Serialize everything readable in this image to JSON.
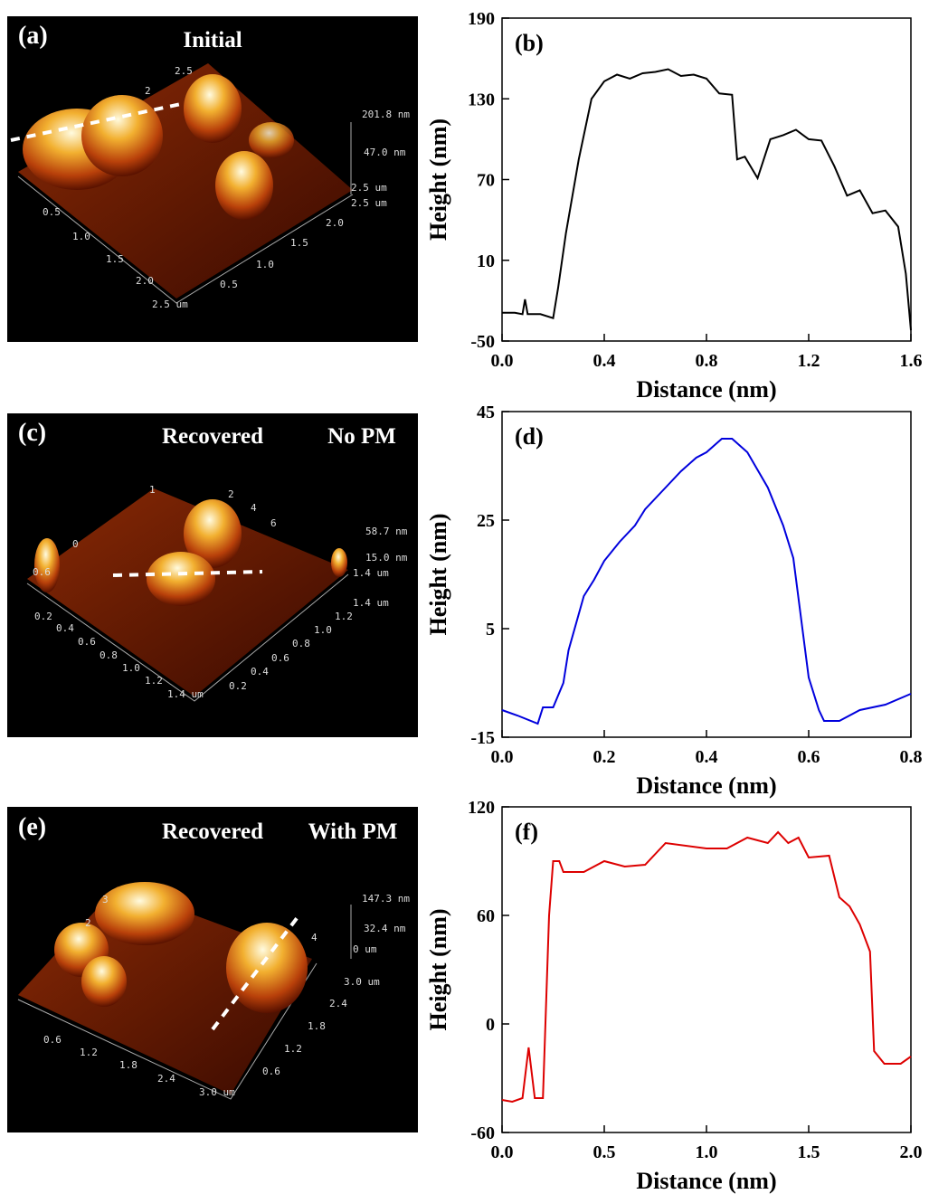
{
  "images": [
    {
      "label": "(a)",
      "titles": [
        "Initial"
      ],
      "texts": [
        "201.8 nm",
        "47.0 nm",
        "2.5 um",
        "2.5 um",
        "0.5",
        "1.0",
        "1.5",
        "2.0",
        "2.5 um",
        "0.5",
        "1.0",
        "1.5",
        "2.0",
        "2",
        "2.5"
      ]
    },
    {
      "label": "(c)",
      "titles": [
        "Recovered",
        "No PM"
      ],
      "texts": [
        "58.7 nm",
        "15.0 nm",
        "1.4 um",
        "1.4 um",
        "0.2",
        "0.4",
        "0.6",
        "0.8",
        "1.0",
        "1.2",
        "1.4 um",
        "0.2",
        "0.4",
        "0.6",
        "0.8",
        "1.0",
        "1.2",
        "1",
        "2",
        "4",
        "6",
        "0",
        "0.6"
      ]
    },
    {
      "label": "(e)",
      "titles": [
        "Recovered",
        "With PM"
      ],
      "texts": [
        "147.3 nm",
        "32.4 nm",
        "0 um",
        "3.0 um",
        "0.6",
        "1.2",
        "1.8",
        "2.4",
        "3.0 um",
        "0.6",
        "1.2",
        "1.8",
        "2.4",
        "3",
        "2",
        "4"
      ]
    }
  ],
  "chart_data": [
    {
      "type": "line",
      "panel_label": "(b)",
      "xlabel": "Distance (nm)",
      "ylabel": "Height (nm)",
      "color": "#000000",
      "x": [
        0,
        0.05,
        0.08,
        0.09,
        0.1,
        0.15,
        0.2,
        0.22,
        0.25,
        0.3,
        0.35,
        0.4,
        0.45,
        0.5,
        0.55,
        0.6,
        0.65,
        0.7,
        0.75,
        0.8,
        0.85,
        0.9,
        0.92,
        0.95,
        1.0,
        1.05,
        1.1,
        1.15,
        1.2,
        1.25,
        1.3,
        1.35,
        1.4,
        1.45,
        1.5,
        1.55,
        1.58,
        1.6
      ],
      "values": [
        -29,
        -29,
        -30,
        -19,
        -30,
        -30,
        -33,
        -10,
        30,
        85,
        130,
        143,
        148,
        145,
        149,
        150,
        152,
        147,
        148,
        145,
        134,
        133,
        85,
        87,
        71,
        100,
        103,
        107,
        100,
        99,
        80,
        58,
        62,
        45,
        47,
        35,
        0,
        -42
      ],
      "xlim": [
        0,
        1.6
      ],
      "xticks": [
        {
          "value": 0,
          "label": "0.0"
        },
        0.4,
        0.8,
        1.2,
        1.6
      ],
      "ylim": [
        -50,
        190
      ],
      "yticks": [
        -50,
        10,
        70,
        130,
        190
      ]
    },
    {
      "type": "line",
      "panel_label": "(d)",
      "xlabel": "Distance (nm)",
      "ylabel": "Height (nm)",
      "color": "#0000dd",
      "x": [
        0,
        0.03,
        0.07,
        0.08,
        0.1,
        0.12,
        0.13,
        0.16,
        0.18,
        0.2,
        0.23,
        0.26,
        0.28,
        0.32,
        0.35,
        0.38,
        0.4,
        0.43,
        0.45,
        0.48,
        0.52,
        0.55,
        0.57,
        0.6,
        0.62,
        0.63,
        0.66,
        0.7,
        0.75,
        0.8
      ],
      "values": [
        -10,
        -11,
        -12.5,
        -9.5,
        -9.5,
        -5,
        1,
        11,
        14,
        17.5,
        21,
        24,
        27,
        31,
        34,
        36.5,
        37.5,
        40,
        40,
        37.5,
        31,
        24,
        18,
        -4,
        -10,
        -12,
        -12,
        -10,
        -9,
        -7
      ],
      "xlim": [
        0,
        0.8
      ],
      "xticks": [
        {
          "value": 0,
          "label": "0.0"
        },
        0.2,
        0.4,
        0.6,
        0.8
      ],
      "ylim": [
        -15,
        45
      ],
      "yticks": [
        -15,
        5,
        25,
        45
      ]
    },
    {
      "type": "line",
      "panel_label": "(f)",
      "xlabel": "Distance (nm)",
      "ylabel": "Height (nm)",
      "color": "#dd0000",
      "x": [
        0,
        0.05,
        0.1,
        0.13,
        0.16,
        0.2,
        0.23,
        0.25,
        0.28,
        0.3,
        0.4,
        0.5,
        0.6,
        0.7,
        0.8,
        1.0,
        1.1,
        1.2,
        1.3,
        1.35,
        1.4,
        1.45,
        1.5,
        1.6,
        1.65,
        1.7,
        1.75,
        1.8,
        1.82,
        1.87,
        1.95,
        2.0
      ],
      "values": [
        -42,
        -43,
        -41,
        -13,
        -41,
        -41,
        60,
        90,
        90,
        84,
        84,
        90,
        87,
        88,
        100,
        97,
        97,
        103,
        100,
        106,
        100,
        103,
        92,
        93,
        70,
        65,
        55,
        40,
        -15,
        -22,
        -22,
        -18
      ],
      "xlim": [
        0,
        2
      ],
      "xticks": [
        {
          "value": 0,
          "label": "0.0"
        },
        0.5,
        {
          "value": 1,
          "label": "1.0"
        },
        1.5,
        {
          "value": 2,
          "label": "2.0"
        }
      ],
      "ylim": [
        -60,
        120
      ],
      "yticks": [
        -60,
        0,
        60,
        120
      ]
    }
  ]
}
